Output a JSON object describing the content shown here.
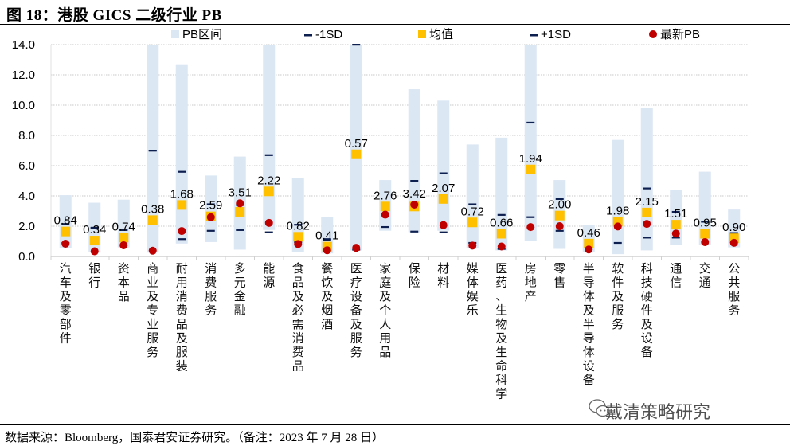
{
  "header": {
    "title": "图 18：港股 GICS 二级行业 PB"
  },
  "footer": {
    "source": "数据来源：Bloomberg，国泰君安证券研究。（备注：2023 年 7 月 28 日）",
    "watermark": "戴清策略研究"
  },
  "chart_data": {
    "type": "bar",
    "title": "港股 GICS 二级行业 PB",
    "xlabel": "",
    "ylabel": "",
    "ylim": [
      0,
      14
    ],
    "yticks": [
      0,
      2,
      4,
      6,
      8,
      10,
      12,
      14
    ],
    "ytick_labels": [
      "0.0",
      "2.0",
      "4.0",
      "6.0",
      "8.0",
      "10.0",
      "12.0",
      "14.0"
    ],
    "grid": true,
    "legend_position": "top",
    "legend": [
      {
        "name": "PB区间",
        "marker": "bar",
        "color": "#dce7f4"
      },
      {
        "name": "-1SD",
        "marker": "dash",
        "color": "#0d1f4f"
      },
      {
        "name": "均值",
        "marker": "square",
        "color": "#ffc000"
      },
      {
        "name": "+1SD",
        "marker": "dash",
        "color": "#0d1f4f"
      },
      {
        "name": "最新PB",
        "marker": "dot",
        "color": "#c00000"
      }
    ],
    "categories": [
      "汽车及零部件",
      "银行",
      "资本品",
      "商业及专业服务",
      "耐用消费品及服装",
      "消费服务",
      "多元金融",
      "能源",
      "食品及必需消费品",
      "餐饮及烟酒",
      "医疗设备及服务",
      "家庭及个人用品",
      "保险",
      "材料",
      "媒体娱乐",
      "医药、生物及生命科学",
      "房地产",
      "零售",
      "半导体及半导体设备",
      "软件及服务",
      "科技硬件及设备",
      "通信",
      "交通",
      "公共服务"
    ],
    "series": [
      {
        "name": "PB区间下限",
        "values": [
          0.55,
          0.3,
          0.6,
          0.25,
          0.85,
          0.95,
          0.45,
          1.75,
          0.3,
          0.2,
          0.4,
          1.7,
          1.6,
          1.7,
          0.55,
          0.4,
          1.05,
          0.5,
          0.3,
          0.15,
          0.4,
          0.75,
          0.75,
          0.6
        ]
      },
      {
        "name": "PB区间上限",
        "values": [
          4.05,
          3.55,
          3.75,
          14.0,
          12.7,
          5.35,
          6.6,
          14.0,
          5.2,
          2.6,
          14.0,
          5.05,
          11.05,
          10.3,
          7.4,
          7.85,
          14.0,
          5.05,
          2.1,
          7.7,
          9.8,
          4.4,
          5.6,
          3.1
        ]
      },
      {
        "name": "-1SD",
        "values": [
          0.9,
          1.9,
          1.75,
          7.0,
          1.15,
          1.7,
          1.75,
          1.6,
          0.95,
          1.15,
          0.45,
          1.95,
          1.65,
          1.6,
          0.9,
          0.5,
          2.6,
          1.7,
          0.85,
          0.9,
          1.25,
          1.25,
          1.3,
          1.55
        ]
      },
      {
        "name": "+1SD",
        "values": [
          2.15,
          1.9,
          1.75,
          7.0,
          5.6,
          3.45,
          3.4,
          6.7,
          2.1,
          1.1,
          14.0,
          3.15,
          5.0,
          5.5,
          3.45,
          2.75,
          8.85,
          3.8,
          1.1,
          2.5,
          4.5,
          2.95,
          2.3,
          1.55
        ]
      },
      {
        "name": "均值",
        "values": [
          1.65,
          1.05,
          1.25,
          2.4,
          3.4,
          2.65,
          2.95,
          4.3,
          1.3,
          0.65,
          6.75,
          3.3,
          3.3,
          3.8,
          2.25,
          1.5,
          5.75,
          2.7,
          0.85,
          2.3,
          2.9,
          2.1,
          1.5,
          1.2
        ]
      },
      {
        "name": "最新PB",
        "values": [
          0.84,
          0.34,
          0.74,
          0.38,
          1.68,
          2.59,
          3.51,
          2.22,
          0.82,
          0.41,
          0.57,
          2.76,
          3.42,
          2.07,
          0.72,
          0.66,
          1.94,
          2.0,
          0.46,
          1.98,
          2.15,
          1.51,
          0.95,
          0.9
        ]
      }
    ],
    "data_labels": [
      "0.84",
      "0.34",
      "0.74",
      "0.38",
      "1.68",
      "2.59",
      "3.51",
      "2.22",
      "0.82",
      "0.41",
      "0.57",
      "2.76",
      "3.42",
      "2.07",
      "0.72",
      "0.66",
      "1.94",
      "2.00",
      "0.46",
      "1.98",
      "2.15",
      "1.51",
      "0.95",
      "0.90"
    ]
  }
}
